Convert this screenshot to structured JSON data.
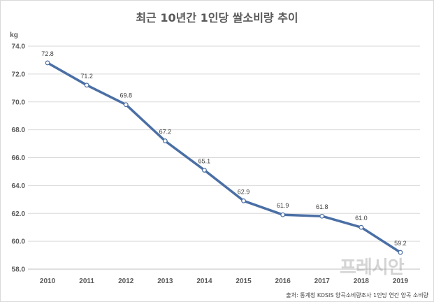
{
  "chart_data": {
    "type": "line",
    "title": "최근 10년간 1인당 쌀소비량 추이",
    "ylabel": "kg",
    "xlabel": "",
    "categories": [
      "2010",
      "2011",
      "2012",
      "2013",
      "2014",
      "2015",
      "2016",
      "2017",
      "2018",
      "2019"
    ],
    "series": [
      {
        "values": [
          72.8,
          71.2,
          69.8,
          67.2,
          65.1,
          62.9,
          61.9,
          61.8,
          61.0,
          59.2
        ]
      }
    ],
    "data_labels": [
      "72.8",
      "71.2",
      "69.8",
      "67.2",
      "65.1",
      "62.9",
      "61.9",
      "61.8",
      "61.0",
      "59.2"
    ],
    "ylim": [
      58,
      74
    ],
    "yticks": [
      "58.0",
      "60.0",
      "62.0",
      "64.0",
      "66.0",
      "68.0",
      "70.0",
      "72.0",
      "74.0"
    ],
    "grid": true,
    "legend": "none",
    "line_color": "#4a6fa5",
    "source": "출처: 통계청 KOSIS 양곡소비량조사 1인당 연간 양곡 소비량"
  },
  "watermark": "프레시안"
}
